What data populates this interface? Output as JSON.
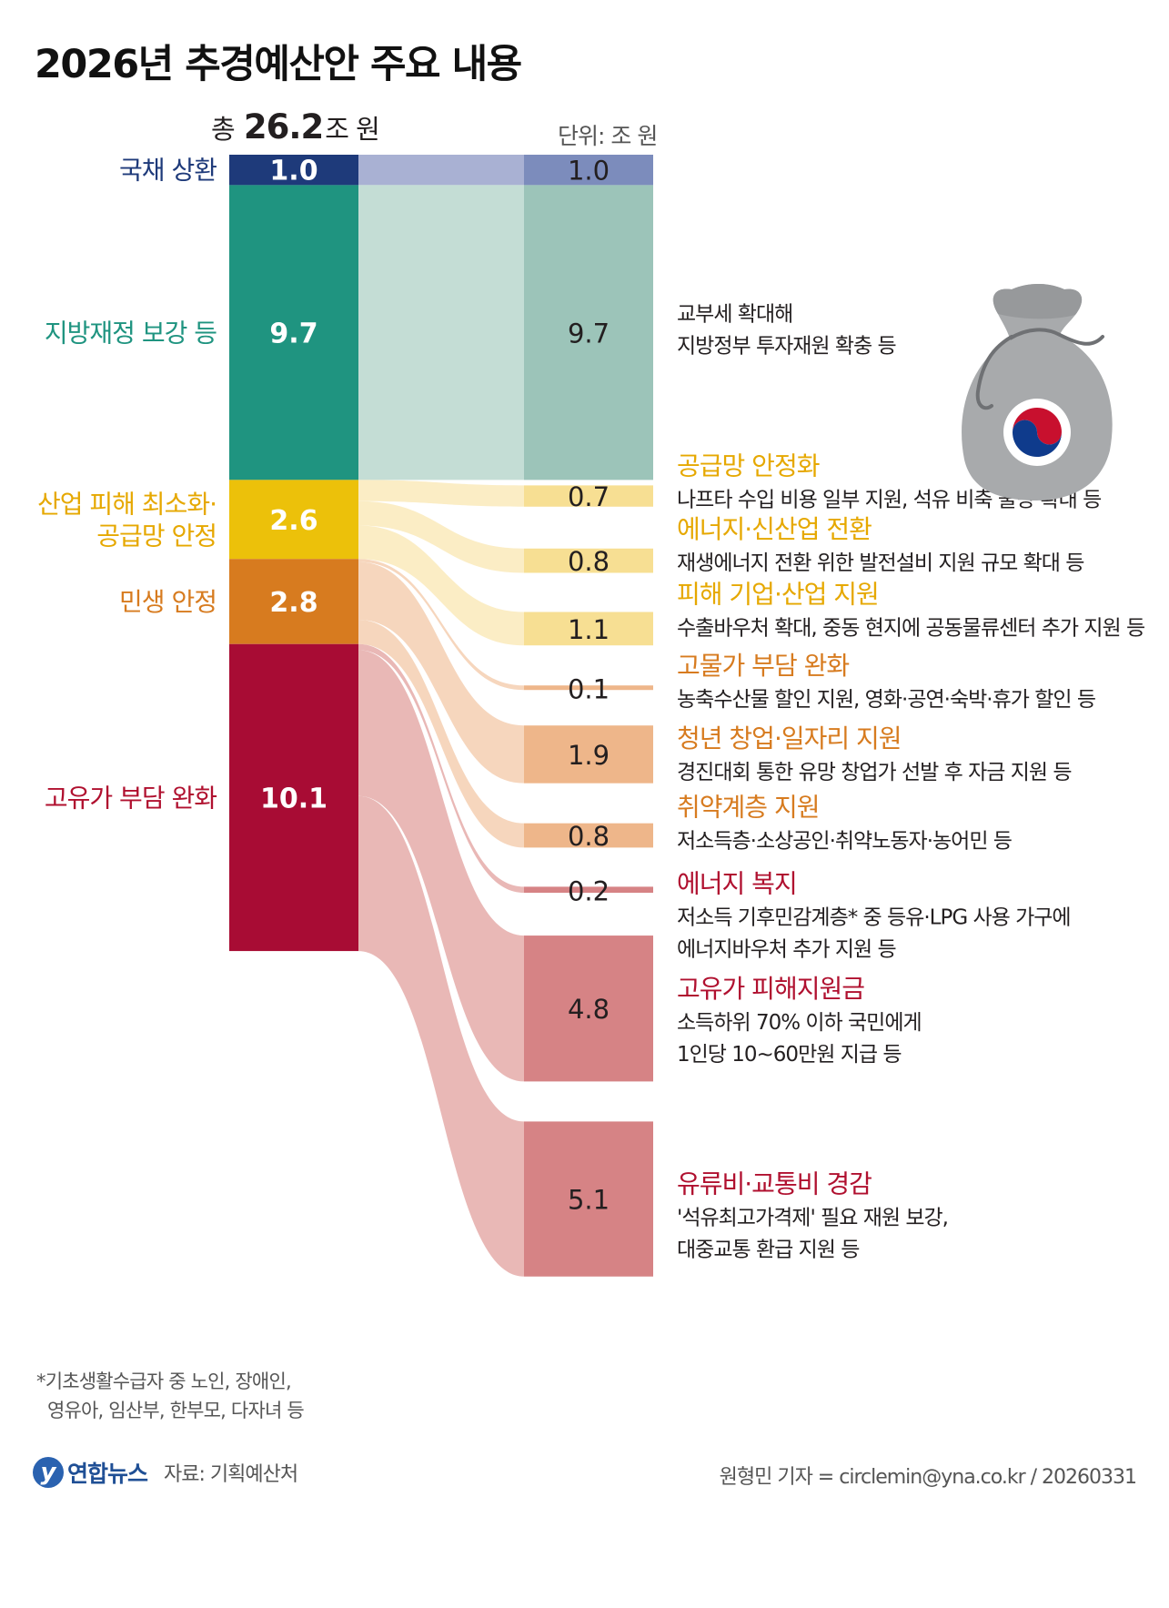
{
  "title": "2026년 추경예산안 주요 내용",
  "total": {
    "prefix": "총",
    "value": "26.2",
    "suffix": "조 원"
  },
  "unit_label": "단위: 조 원",
  "footnote": [
    "*기초생활수급자 중 노인, 장애인,",
    "영유아, 임산부, 한부모, 다자녀 등"
  ],
  "logo_text": "연합뉴스",
  "source": "자료: 기획예산처",
  "credit": "원형민 기자 = circlemin@yna.co.kr / 20260331",
  "colors": {
    "navy": "#1e3a7a",
    "teal": "#1f9480",
    "gold": "#ecc10a",
    "orange": "#d77b1f",
    "crimson": "#a80c34",
    "bag": "#a7a9ac",
    "text_gold": "#e6a800",
    "text_orange": "#d77b1f",
    "text_red": "#b0102f"
  },
  "chart_data": {
    "type": "sankey",
    "title": "2026년 추경예산안 주요 내용",
    "total": 26.2,
    "unit": "조 원",
    "categories": [
      {
        "id": "debt",
        "label": [
          "국채 상환"
        ],
        "value": 1.0,
        "color": "#1e3a7a",
        "text_color": "#1e3a7a"
      },
      {
        "id": "local",
        "label": [
          "지방재정 보강 등"
        ],
        "value": 9.7,
        "color": "#1f9480",
        "text_color": "#1f9480"
      },
      {
        "id": "industry",
        "label": [
          "산업 피해 최소화·",
          "공급망 안정"
        ],
        "value": 2.6,
        "color": "#ecc10a",
        "text_color": "#e6a800"
      },
      {
        "id": "living",
        "label": [
          "민생 안정"
        ],
        "value": 2.8,
        "color": "#d77b1f",
        "text_color": "#d77b1f"
      },
      {
        "id": "oil",
        "label": [
          "고유가 부담 완화"
        ],
        "value": 10.1,
        "color": "#a80c34",
        "text_color": "#b0102f"
      }
    ],
    "items": [
      {
        "from": "debt",
        "value": 1.0,
        "title": "",
        "desc": [],
        "color": "#7c8cbc",
        "link": "#a9b1d3",
        "title_color": "#231f20"
      },
      {
        "from": "local",
        "value": 9.7,
        "title": "",
        "desc": [
          "교부세 확대해",
          "지방정부 투자재원 확충 등"
        ],
        "color": "#9cc4b9",
        "link": "#c4ddd5",
        "title_color": "#231f20"
      },
      {
        "from": "industry",
        "value": 0.7,
        "title": "공급망 안정화",
        "desc": [
          "나프타 수입 비용 일부 지원, 석유 비축 물량 확대 등"
        ],
        "color": "#f7df93",
        "link": "#fbedc5",
        "title_color": "#e6a800"
      },
      {
        "from": "industry",
        "value": 0.8,
        "title": "에너지·신산업 전환",
        "desc": [
          "재생에너지 전환 위한 발전설비 지원 규모 확대 등"
        ],
        "color": "#f7df93",
        "link": "#fbedc5",
        "title_color": "#e6a800"
      },
      {
        "from": "industry",
        "value": 1.1,
        "title": "피해 기업·산업 지원",
        "desc": [
          "수출바우처 확대, 중동 현지에 공동물류센터 추가 지원 등"
        ],
        "color": "#f7df93",
        "link": "#fbedc5",
        "title_color": "#e6a800"
      },
      {
        "from": "living",
        "value": 0.1,
        "title": "고물가 부담 완화",
        "desc": [
          "농축수산물 할인 지원, 영화·공연·숙박·휴가 할인 등"
        ],
        "color": "#eeb68a",
        "link": "#f6d6bd",
        "title_color": "#d77b1f"
      },
      {
        "from": "living",
        "value": 1.9,
        "title": "청년 창업·일자리 지원",
        "desc": [
          "경진대회 통한 유망 창업가 선발 후 자금 지원 등"
        ],
        "color": "#eeb68a",
        "link": "#f6d6bd",
        "title_color": "#d77b1f"
      },
      {
        "from": "living",
        "value": 0.8,
        "title": "취약계층 지원",
        "desc": [
          "저소득층·소상공인·취약노동자·농어민 등"
        ],
        "color": "#eeb68a",
        "link": "#f6d6bd",
        "title_color": "#d77b1f"
      },
      {
        "from": "oil",
        "value": 0.2,
        "title": "에너지 복지",
        "desc": [
          "저소득 기후민감계층* 중 등유·LPG 사용 가구에",
          "에너지바우처 추가 지원 등"
        ],
        "color": "#d68385",
        "link": "#e9b8b6",
        "title_color": "#b0102f"
      },
      {
        "from": "oil",
        "value": 4.8,
        "title": "고유가 피해지원금",
        "desc": [
          "소득하위 70% 이하 국민에게",
          "1인당 10~60만원 지급 등"
        ],
        "color": "#d68385",
        "link": "#e9b8b6",
        "title_color": "#b0102f"
      },
      {
        "from": "oil",
        "value": 5.1,
        "title": "유류비·교통비 경감",
        "desc": [
          "'석유최고가격제' 필요 재원 보강,",
          "대중교통 환급 지원 등"
        ],
        "color": "#d68385",
        "link": "#e9b8b6",
        "title_color": "#b0102f"
      }
    ]
  }
}
